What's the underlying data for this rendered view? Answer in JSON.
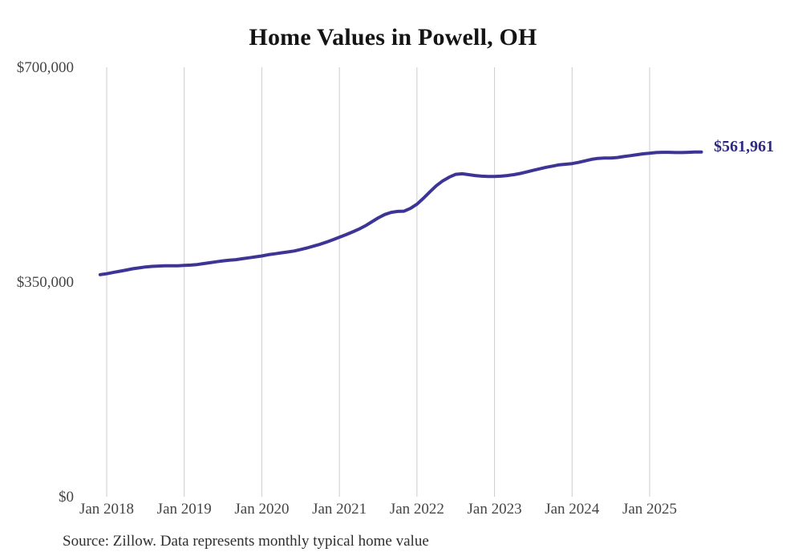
{
  "page": {
    "title": "Home Values in Powell, OH",
    "source_note": "Source: Zillow. Data represents monthly typical home value"
  },
  "colors": {
    "background": "#ffffff",
    "line": "#3c3596",
    "end_label_text": "#2e2a80",
    "grid": "#cccccc",
    "tick_text": "#454545",
    "title_text": "#141414",
    "source_text": "#2f2f2f"
  },
  "chart_data": {
    "type": "line",
    "title": "Home Values in Powell, OH",
    "xlabel": "",
    "ylabel": "",
    "unit": "USD",
    "grid": "vertical-only",
    "legend": "none",
    "ylim": [
      0,
      700000
    ],
    "y_ticks": [
      {
        "label": "$0",
        "value": 0
      },
      {
        "label": "$350,000",
        "value": 350000
      },
      {
        "label": "$700,000",
        "value": 700000
      }
    ],
    "x_ticks": [
      {
        "label": "Jan 2018",
        "month": "2018-01"
      },
      {
        "label": "Jan 2019",
        "month": "2019-01"
      },
      {
        "label": "Jan 2020",
        "month": "2020-01"
      },
      {
        "label": "Jan 2021",
        "month": "2021-01"
      },
      {
        "label": "Jan 2022",
        "month": "2022-01"
      },
      {
        "label": "Jan 2023",
        "month": "2023-01"
      },
      {
        "label": "Jan 2024",
        "month": "2024-01"
      },
      {
        "label": "Jan 2025",
        "month": "2025-01"
      }
    ],
    "end_label": "$561,961",
    "final_value": 561961,
    "x": [
      "2017-12",
      "2018-01",
      "2018-02",
      "2018-03",
      "2018-04",
      "2018-05",
      "2018-06",
      "2018-07",
      "2018-08",
      "2018-09",
      "2018-10",
      "2018-11",
      "2018-12",
      "2019-01",
      "2019-02",
      "2019-03",
      "2019-04",
      "2019-05",
      "2019-06",
      "2019-07",
      "2019-08",
      "2019-09",
      "2019-10",
      "2019-11",
      "2019-12",
      "2020-01",
      "2020-02",
      "2020-03",
      "2020-04",
      "2020-05",
      "2020-06",
      "2020-07",
      "2020-08",
      "2020-09",
      "2020-10",
      "2020-11",
      "2020-12",
      "2021-01",
      "2021-02",
      "2021-03",
      "2021-04",
      "2021-05",
      "2021-06",
      "2021-07",
      "2021-08",
      "2021-09",
      "2021-10",
      "2021-11",
      "2021-12",
      "2022-01",
      "2022-02",
      "2022-03",
      "2022-04",
      "2022-05",
      "2022-06",
      "2022-07",
      "2022-08",
      "2022-09",
      "2022-10",
      "2022-11",
      "2022-12",
      "2023-01",
      "2023-02",
      "2023-03",
      "2023-04",
      "2023-05",
      "2023-06",
      "2023-07",
      "2023-08",
      "2023-09",
      "2023-10",
      "2023-11",
      "2023-12",
      "2024-01",
      "2024-02",
      "2024-03",
      "2024-04",
      "2024-05",
      "2024-06",
      "2024-07",
      "2024-08",
      "2024-09",
      "2024-10",
      "2024-11",
      "2024-12",
      "2025-01",
      "2025-02",
      "2025-03",
      "2025-04",
      "2025-05",
      "2025-06",
      "2025-07",
      "2025-08",
      "2025-09"
    ],
    "series": [
      {
        "name": "Typical home value",
        "color": "#3c3596",
        "values": [
          362000,
          363500,
          365500,
          367500,
          369500,
          371500,
          373000,
          374500,
          375500,
          376000,
          376500,
          376500,
          376500,
          377000,
          377500,
          378500,
          380000,
          381500,
          383000,
          384500,
          385500,
          386500,
          388000,
          389500,
          391000,
          392500,
          394500,
          396000,
          397500,
          399000,
          400500,
          403000,
          405500,
          408500,
          411500,
          415000,
          419000,
          423000,
          427000,
          431500,
          436000,
          441500,
          448000,
          454500,
          460000,
          463500,
          465000,
          465500,
          470000,
          477000,
          486500,
          497000,
          507000,
          515000,
          521000,
          525500,
          526500,
          525000,
          523500,
          522500,
          522000,
          522000,
          522500,
          523500,
          525000,
          527000,
          529500,
          532000,
          534500,
          537000,
          539000,
          541000,
          542000,
          543000,
          545000,
          547500,
          550000,
          551500,
          552000,
          552000,
          553000,
          554500,
          556000,
          557500,
          559000,
          560000,
          561000,
          561500,
          561500,
          561000,
          561000,
          561500,
          562000,
          561961
        ]
      }
    ]
  }
}
